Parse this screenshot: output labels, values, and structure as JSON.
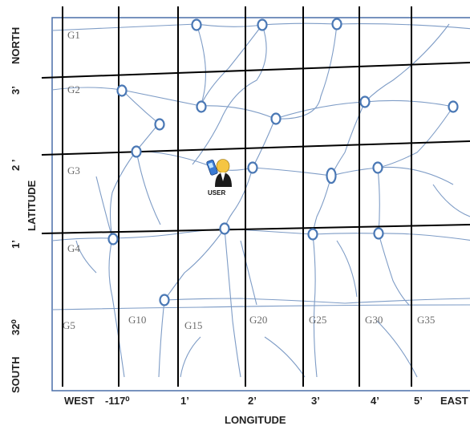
{
  "diagram": {
    "grid_labels": [
      "G1",
      "G2",
      "G3",
      "G4",
      "G5",
      "G10",
      "G15",
      "G20",
      "G25",
      "G30",
      "G35"
    ],
    "user_label": "USER",
    "axis": {
      "x_title": "LONGITUDE",
      "x_ticks": [
        "WEST",
        "-117⁰",
        "1’",
        "2’",
        "3’",
        "4’",
        "5’",
        "EAST"
      ],
      "y_title": "LATITUDE",
      "y_ticks": [
        "SOUTH",
        "32⁰",
        "1’",
        "2 ’",
        "3’",
        "NORTH"
      ]
    },
    "colors": {
      "frame": "#4a6fa8",
      "road": "#7e9cc6",
      "grid_line": "#000000",
      "node": "#4a78b5"
    }
  }
}
